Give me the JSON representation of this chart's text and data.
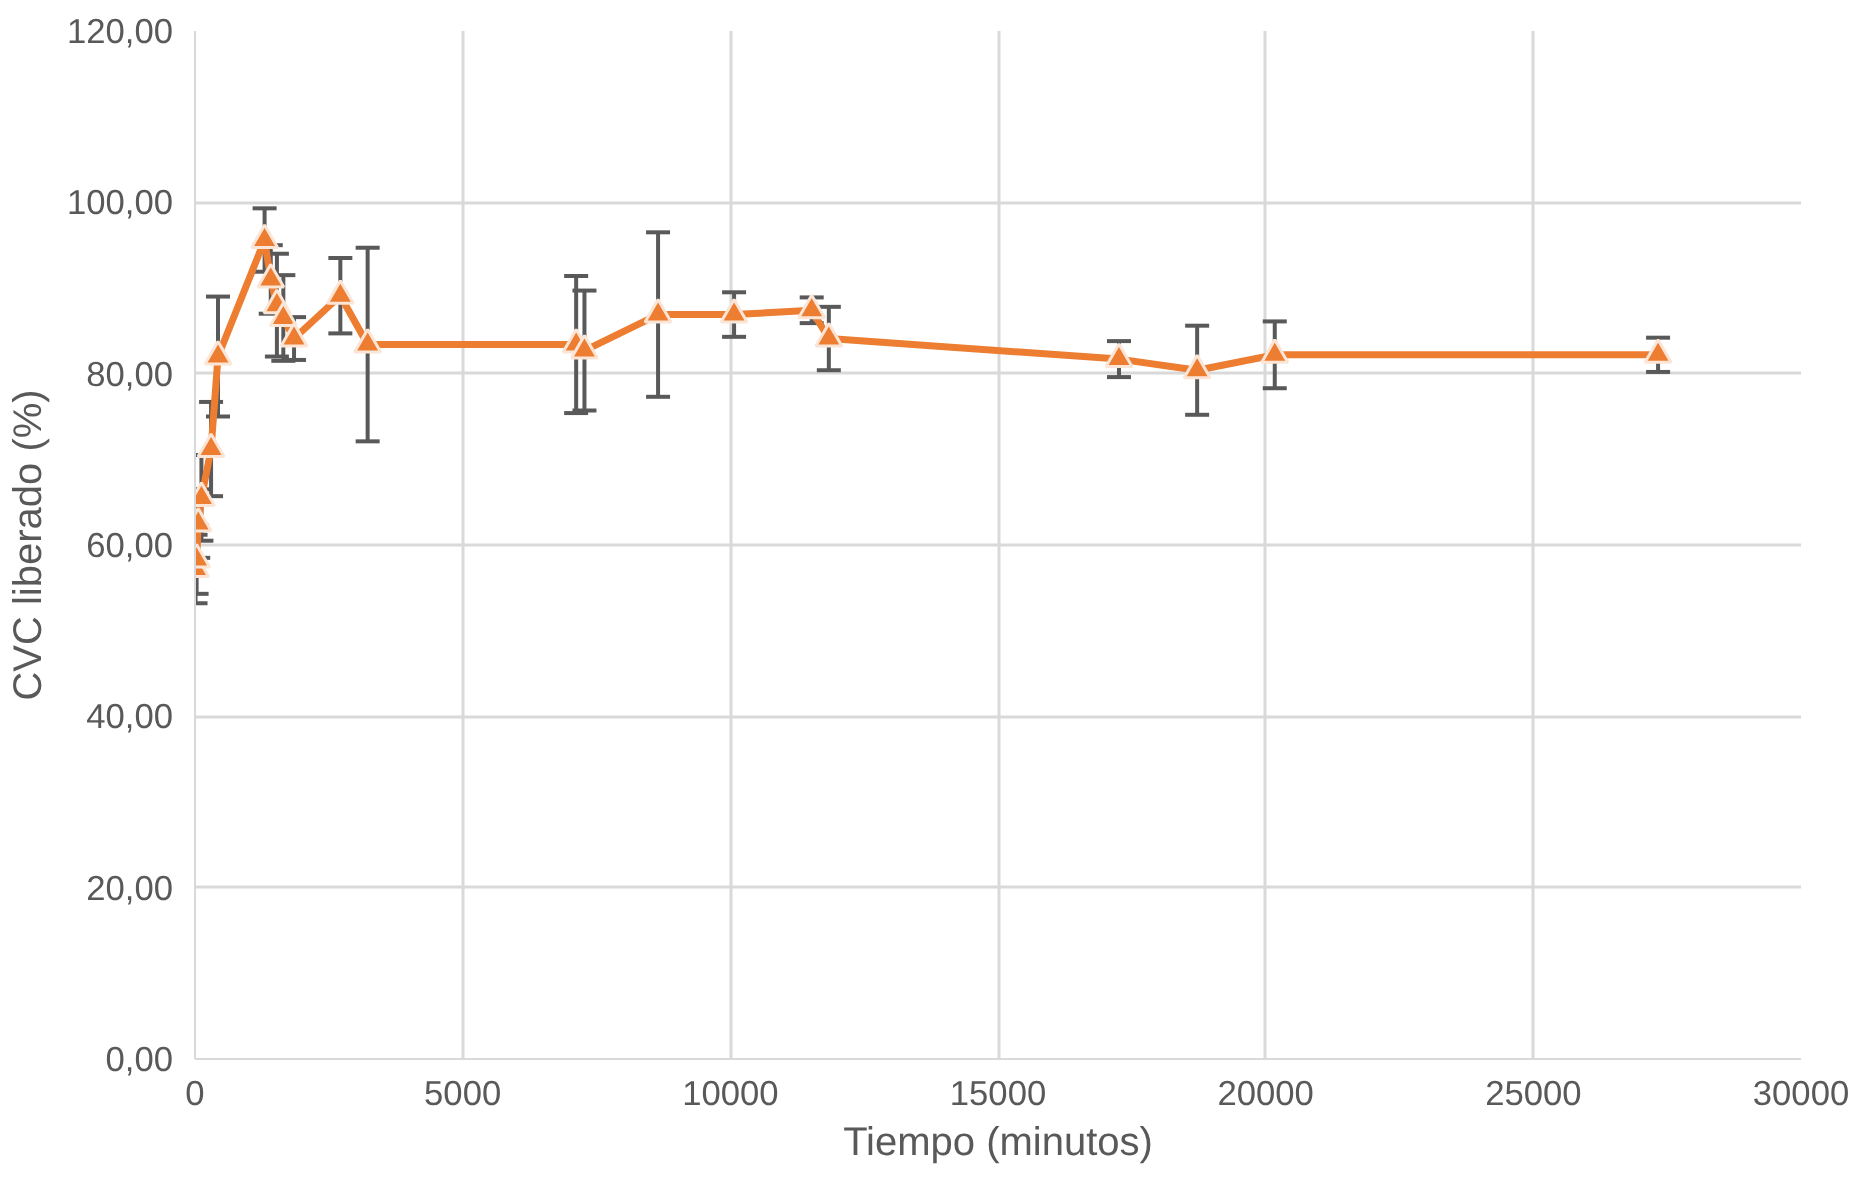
{
  "chart_data": {
    "type": "line",
    "xlabel": "Tiempo (minutos)",
    "ylabel": "CVC liberado (%)",
    "x": [
      10,
      30,
      60,
      120,
      300,
      430,
      1300,
      1415,
      1530,
      1650,
      1850,
      2715,
      3225,
      7120,
      7275,
      8650,
      10070,
      11520,
      11840,
      17260,
      18720,
      20170,
      27330
    ],
    "series": [
      {
        "color": "#ed7d31",
        "values": [
          57.2,
          58.3,
          62.5,
          65.5,
          71.2,
          82,
          95.6,
          91,
          88,
          86.5,
          84.1,
          89.1,
          83.4,
          83.4,
          82.7,
          86.9,
          86.9,
          87.4,
          84.1,
          81.7,
          80.4,
          82.2,
          82.2
        ],
        "errors": [
          4,
          4,
          4,
          5,
          5.5,
          7,
          3.7,
          4,
          6,
          5,
          2.5,
          4.4,
          11.3,
          8,
          7,
          9.6,
          2.6,
          1.5,
          3.7,
          2.1,
          5.2,
          3.9,
          2
        ]
      }
    ],
    "xlim": [
      0,
      30000
    ],
    "xticks": [
      0,
      5000,
      10000,
      15000,
      20000,
      25000,
      30000
    ],
    "ylim": [
      0,
      120
    ],
    "yticks": [
      {
        "value": 0,
        "label": "0,00"
      },
      {
        "value": 20,
        "label": "20,00"
      },
      {
        "value": 40,
        "label": "40,00"
      },
      {
        "value": 60,
        "label": "60,00"
      },
      {
        "value": 80,
        "label": "80,00"
      },
      {
        "value": 100,
        "label": "100,00"
      },
      {
        "value": 120,
        "label": "120,00"
      }
    ],
    "grid": true,
    "marker": "triangle",
    "line_style": "solid"
  }
}
